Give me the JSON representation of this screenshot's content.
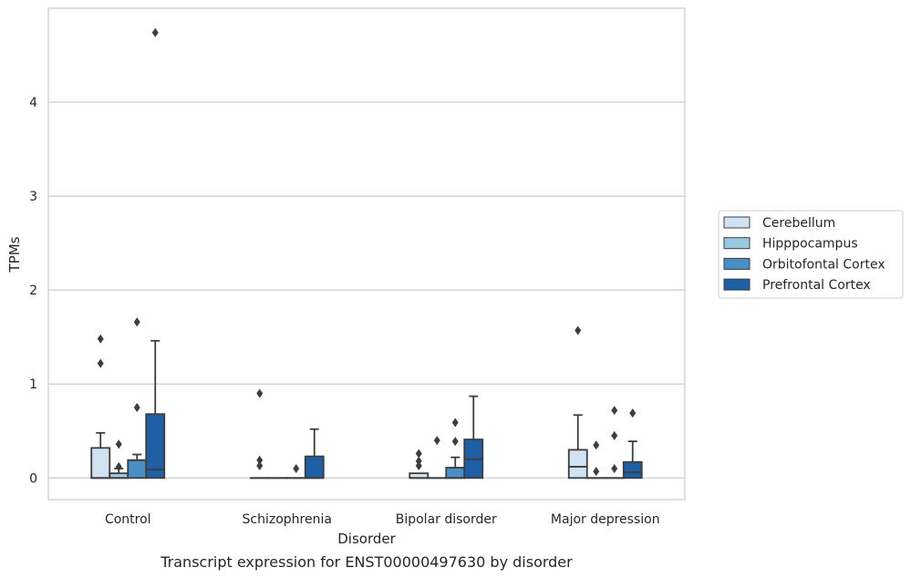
{
  "chart_data": {
    "type": "box",
    "caption": "Transcript expression for ENST00000497630 by disorder",
    "xlabel": "Disorder",
    "ylabel": "TPMs",
    "ylim": [
      -0.23,
      5.0
    ],
    "yticks": [
      0,
      1,
      2,
      3,
      4
    ],
    "grid": "horizontal",
    "legend_position": "right",
    "categories": [
      "Control",
      "Schizophrenia",
      "Bipolar disorder",
      "Major depression"
    ],
    "series": [
      {
        "name": "Cerebellum",
        "color": "#d0e1f2",
        "boxes": [
          {
            "q1": 0.0,
            "median": 0.0,
            "q3": 0.32,
            "whisker_low": 0.0,
            "whisker_high": 0.48,
            "outliers": [
              1.22,
              1.48
            ]
          },
          {
            "q1": 0.0,
            "median": 0.0,
            "q3": 0.0,
            "whisker_low": 0.0,
            "whisker_high": 0.0,
            "outliers": [
              0.9,
              0.19,
              0.13
            ]
          },
          {
            "q1": 0.0,
            "median": 0.0,
            "q3": 0.05,
            "whisker_low": 0.0,
            "whisker_high": 0.05,
            "outliers": [
              0.13,
              0.18,
              0.26
            ]
          },
          {
            "q1": 0.0,
            "median": 0.12,
            "q3": 0.3,
            "whisker_low": 0.0,
            "whisker_high": 0.67,
            "outliers": [
              1.57
            ]
          }
        ]
      },
      {
        "name": "Hipppocampus",
        "color": "#9ac8e0",
        "boxes": [
          {
            "q1": 0.0,
            "median": 0.0,
            "q3": 0.05,
            "whisker_low": 0.0,
            "whisker_high": 0.1,
            "outliers": [
              0.12,
              0.36
            ]
          },
          {
            "q1": 0.0,
            "median": 0.0,
            "q3": 0.0,
            "whisker_low": 0.0,
            "whisker_high": 0.0,
            "outliers": []
          },
          {
            "q1": 0.0,
            "median": 0.0,
            "q3": 0.0,
            "whisker_low": 0.0,
            "whisker_high": 0.0,
            "outliers": [
              0.4
            ]
          },
          {
            "q1": 0.0,
            "median": 0.0,
            "q3": 0.0,
            "whisker_low": 0.0,
            "whisker_high": 0.0,
            "outliers": [
              0.07,
              0.35
            ]
          }
        ]
      },
      {
        "name": "Orbitofontal Cortex",
        "color": "#4a8fc4",
        "boxes": [
          {
            "q1": 0.0,
            "median": 0.19,
            "q3": 0.19,
            "whisker_low": 0.0,
            "whisker_high": 0.25,
            "outliers": [
              0.75,
              1.66
            ]
          },
          {
            "q1": 0.0,
            "median": 0.0,
            "q3": 0.0,
            "whisker_low": 0.0,
            "whisker_high": 0.0,
            "outliers": [
              0.1
            ]
          },
          {
            "q1": 0.0,
            "median": 0.0,
            "q3": 0.11,
            "whisker_low": 0.0,
            "whisker_high": 0.22,
            "outliers": [
              0.39,
              0.59
            ]
          },
          {
            "q1": 0.0,
            "median": 0.0,
            "q3": 0.0,
            "whisker_low": 0.0,
            "whisker_high": 0.0,
            "outliers": [
              0.1,
              0.45,
              0.72
            ]
          }
        ]
      },
      {
        "name": "Prefrontal Cortex",
        "color": "#1f5fa6",
        "boxes": [
          {
            "q1": 0.0,
            "median": 0.09,
            "q3": 0.68,
            "whisker_low": 0.0,
            "whisker_high": 1.46,
            "outliers": [
              4.74
            ]
          },
          {
            "q1": 0.0,
            "median": 0.0,
            "q3": 0.23,
            "whisker_low": 0.0,
            "whisker_high": 0.52,
            "outliers": []
          },
          {
            "q1": 0.0,
            "median": 0.2,
            "q3": 0.41,
            "whisker_low": 0.0,
            "whisker_high": 0.87,
            "outliers": []
          },
          {
            "q1": 0.0,
            "median": 0.06,
            "q3": 0.17,
            "whisker_low": 0.0,
            "whisker_high": 0.39,
            "outliers": [
              0.69
            ]
          }
        ]
      }
    ]
  }
}
